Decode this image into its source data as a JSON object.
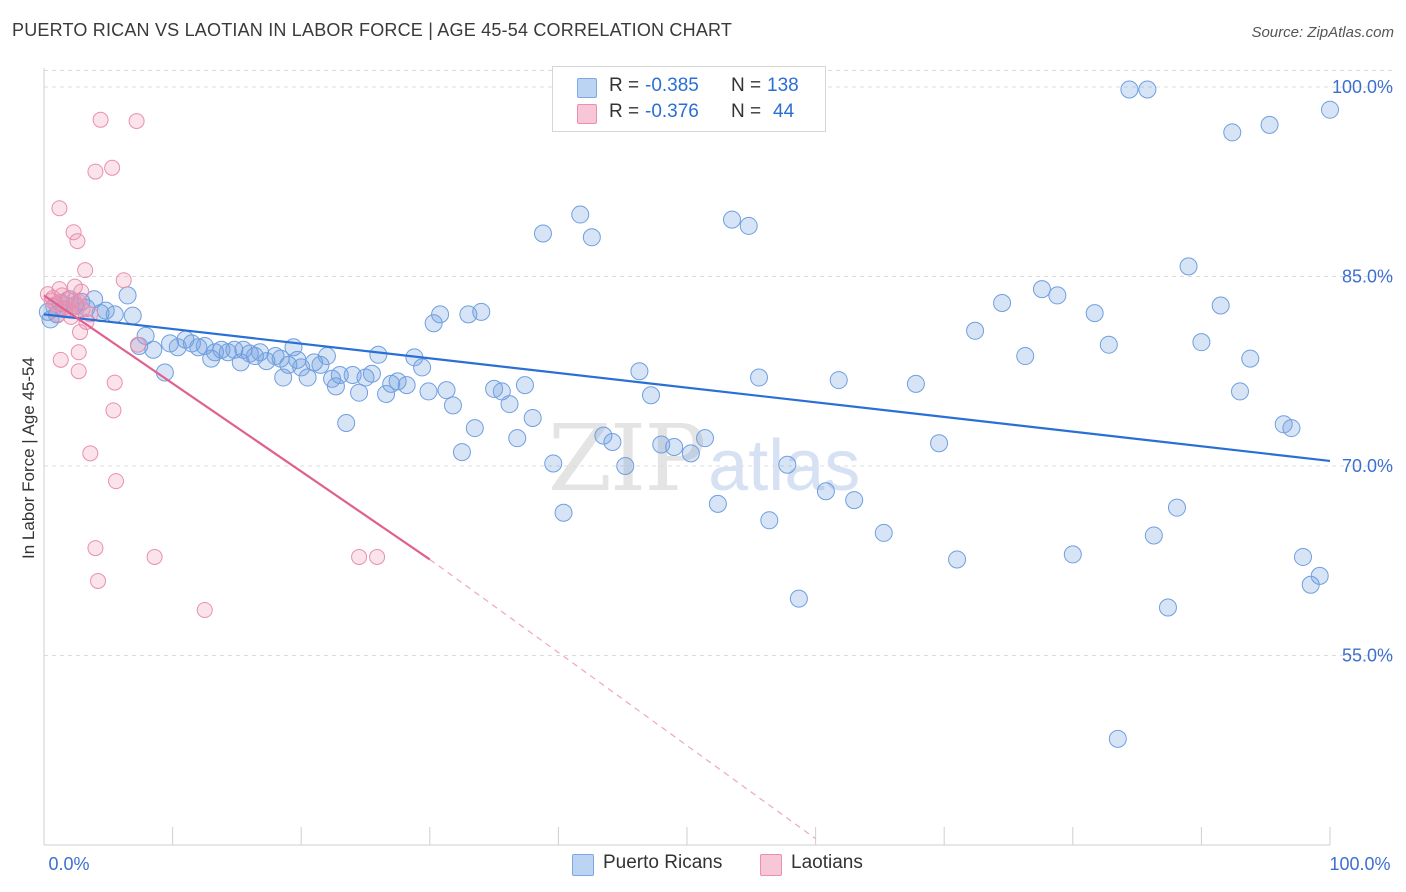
{
  "header": {
    "title": "PUERTO RICAN VS LAOTIAN IN LABOR FORCE | AGE 45-54 CORRELATION CHART",
    "source": "Source: ZipAtlas.com"
  },
  "watermark": {
    "zip": "ZIP",
    "atlas": "atlas"
  },
  "legend": {
    "rows": [
      {
        "r_label": "R =",
        "r_value": "-0.385",
        "n_label": "N =",
        "n_value": "138",
        "color": "#6f9fe0"
      },
      {
        "r_label": "R =",
        "r_value": "-0.376",
        "n_label": "N =",
        "n_value": "44",
        "color": "#ea8fae"
      }
    ]
  },
  "bottom_legend": {
    "items": [
      {
        "label": "Puerto Ricans",
        "color": "#6f9fe0"
      },
      {
        "label": "Laotians",
        "color": "#ea8fae"
      }
    ]
  },
  "chart_data": {
    "type": "scatter",
    "title": "PUERTO RICAN VS LAOTIAN IN LABOR FORCE | AGE 45-54 CORRELATION CHART",
    "ylabel": "In Labor Force | Age 45-54",
    "xlabel": "",
    "x_tick_labels": [
      "0.0%",
      "100.0%"
    ],
    "y_tick_labels": [
      "100.0%",
      "85.0%",
      "70.0%",
      "55.0%"
    ],
    "y_ticks": [
      100,
      85,
      70,
      55
    ],
    "xlim": [
      0,
      100
    ],
    "ylim": [
      40,
      101.5
    ],
    "grid": true,
    "legend_position": "top-center",
    "colors": {
      "puerto_ricans": "#6f9fe0",
      "laotians": "#ea8fae",
      "trend_blue": "#2a6fd4",
      "trend_pink": "#e0608f"
    },
    "series": [
      {
        "name": "Puerto Ricans",
        "color": "#6f9fe0",
        "trend": {
          "x": [
            0,
            100
          ],
          "y": [
            82.0,
            70.4
          ]
        },
        "points": [
          [
            0.3,
            82.2
          ],
          [
            0.5,
            81.6
          ],
          [
            0.8,
            82.6
          ],
          [
            1.0,
            82.0
          ],
          [
            1.3,
            82.9
          ],
          [
            1.6,
            82.4
          ],
          [
            2.0,
            83.2
          ],
          [
            2.4,
            82.7
          ],
          [
            2.9,
            83.0
          ],
          [
            3.3,
            82.5
          ],
          [
            3.9,
            83.2
          ],
          [
            4.4,
            82.1
          ],
          [
            4.8,
            82.3
          ],
          [
            5.5,
            82.0
          ],
          [
            6.5,
            83.5
          ],
          [
            6.9,
            81.9
          ],
          [
            7.4,
            79.5
          ],
          [
            7.9,
            80.3
          ],
          [
            8.5,
            79.2
          ],
          [
            9.4,
            77.4
          ],
          [
            9.8,
            79.7
          ],
          [
            10.4,
            79.4
          ],
          [
            11.0,
            80.0
          ],
          [
            11.5,
            79.7
          ],
          [
            12.0,
            79.4
          ],
          [
            12.5,
            79.5
          ],
          [
            13.0,
            78.5
          ],
          [
            13.3,
            79.0
          ],
          [
            13.8,
            79.2
          ],
          [
            14.3,
            79.0
          ],
          [
            14.8,
            79.2
          ],
          [
            15.3,
            78.2
          ],
          [
            15.5,
            79.2
          ],
          [
            16.0,
            78.9
          ],
          [
            16.4,
            78.7
          ],
          [
            16.8,
            79.0
          ],
          [
            17.3,
            78.3
          ],
          [
            18.0,
            78.7
          ],
          [
            18.4,
            78.5
          ],
          [
            18.6,
            77.0
          ],
          [
            19.0,
            78.0
          ],
          [
            19.4,
            79.4
          ],
          [
            19.7,
            78.4
          ],
          [
            20.0,
            77.8
          ],
          [
            20.5,
            77.0
          ],
          [
            21.0,
            78.2
          ],
          [
            21.5,
            78.0
          ],
          [
            22.0,
            78.7
          ],
          [
            22.4,
            76.9
          ],
          [
            22.7,
            76.3
          ],
          [
            23.0,
            77.2
          ],
          [
            23.5,
            73.4
          ],
          [
            24.0,
            77.2
          ],
          [
            24.5,
            75.8
          ],
          [
            25.0,
            77.0
          ],
          [
            25.5,
            77.3
          ],
          [
            26.0,
            78.8
          ],
          [
            26.6,
            75.7
          ],
          [
            27.0,
            76.5
          ],
          [
            27.5,
            76.7
          ],
          [
            28.2,
            76.4
          ],
          [
            28.8,
            78.6
          ],
          [
            29.4,
            77.8
          ],
          [
            29.9,
            75.9
          ],
          [
            30.3,
            81.3
          ],
          [
            30.8,
            82.0
          ],
          [
            31.3,
            76.0
          ],
          [
            31.8,
            74.8
          ],
          [
            32.5,
            71.1
          ],
          [
            33.0,
            82.0
          ],
          [
            33.5,
            73.0
          ],
          [
            34.0,
            82.2
          ],
          [
            35.0,
            76.1
          ],
          [
            35.6,
            75.9
          ],
          [
            36.2,
            74.9
          ],
          [
            36.8,
            72.2
          ],
          [
            37.4,
            76.4
          ],
          [
            38.0,
            73.8
          ],
          [
            38.8,
            88.4
          ],
          [
            39.6,
            70.2
          ],
          [
            40.4,
            66.3
          ],
          [
            41.7,
            89.9
          ],
          [
            42.6,
            88.1
          ],
          [
            43.5,
            72.4
          ],
          [
            44.2,
            71.9
          ],
          [
            45.2,
            70.0
          ],
          [
            46.3,
            77.5
          ],
          [
            47.2,
            75.6
          ],
          [
            48.0,
            71.7
          ],
          [
            49.0,
            71.5
          ],
          [
            50.3,
            71.0
          ],
          [
            51.4,
            72.2
          ],
          [
            52.4,
            67.0
          ],
          [
            53.5,
            89.5
          ],
          [
            54.8,
            89.0
          ],
          [
            55.6,
            77.0
          ],
          [
            56.4,
            65.7
          ],
          [
            57.8,
            70.1
          ],
          [
            58.7,
            59.5
          ],
          [
            60.8,
            68.0
          ],
          [
            61.8,
            76.8
          ],
          [
            63.0,
            67.3
          ],
          [
            65.3,
            64.7
          ],
          [
            67.8,
            76.5
          ],
          [
            69.6,
            71.8
          ],
          [
            71.0,
            62.6
          ],
          [
            72.4,
            80.7
          ],
          [
            74.5,
            82.9
          ],
          [
            76.3,
            78.7
          ],
          [
            77.6,
            84.0
          ],
          [
            78.8,
            83.5
          ],
          [
            80.0,
            63.0
          ],
          [
            81.7,
            82.1
          ],
          [
            82.8,
            79.6
          ],
          [
            83.5,
            48.4
          ],
          [
            84.4,
            99.8
          ],
          [
            85.8,
            99.8
          ],
          [
            86.3,
            64.5
          ],
          [
            87.4,
            58.8
          ],
          [
            88.1,
            66.7
          ],
          [
            89.0,
            85.8
          ],
          [
            90.0,
            79.8
          ],
          [
            91.5,
            82.7
          ],
          [
            92.4,
            96.4
          ],
          [
            93.0,
            75.9
          ],
          [
            93.8,
            78.5
          ],
          [
            95.3,
            97.0
          ],
          [
            96.4,
            73.3
          ],
          [
            97.0,
            73.0
          ],
          [
            97.9,
            62.8
          ],
          [
            98.5,
            60.6
          ],
          [
            99.2,
            61.3
          ],
          [
            100.0,
            98.2
          ]
        ]
      },
      {
        "name": "Laotians",
        "color": "#ea8fae",
        "trend": {
          "x": [
            0,
            30
          ],
          "y": [
            83.5,
            62.6
          ],
          "dashed_to": {
            "x": 60,
            "y": 40.5
          }
        },
        "points": [
          [
            0.3,
            83.6
          ],
          [
            0.6,
            83.1
          ],
          [
            0.9,
            82.8
          ],
          [
            1.2,
            84.0
          ],
          [
            1.5,
            82.5
          ],
          [
            1.8,
            83.2
          ],
          [
            2.1,
            81.8
          ],
          [
            2.4,
            84.2
          ],
          [
            2.7,
            83.0
          ],
          [
            3.0,
            82.4
          ],
          [
            3.3,
            81.4
          ],
          [
            3.6,
            82.0
          ],
          [
            0.7,
            83.3
          ],
          [
            1.1,
            82.0
          ],
          [
            1.4,
            83.5
          ],
          [
            1.7,
            82.8
          ],
          [
            2.0,
            82.3
          ],
          [
            2.3,
            83.1
          ],
          [
            2.6,
            82.6
          ],
          [
            2.9,
            83.8
          ],
          [
            1.2,
            90.4
          ],
          [
            1.3,
            78.4
          ],
          [
            2.3,
            88.5
          ],
          [
            2.6,
            87.8
          ],
          [
            2.7,
            79.0
          ],
          [
            2.7,
            77.5
          ],
          [
            2.8,
            80.6
          ],
          [
            3.2,
            85.5
          ],
          [
            3.6,
            71.0
          ],
          [
            4.0,
            93.3
          ],
          [
            4.0,
            63.5
          ],
          [
            4.2,
            60.9
          ],
          [
            4.4,
            97.4
          ],
          [
            5.3,
            93.6
          ],
          [
            5.4,
            74.4
          ],
          [
            5.5,
            76.6
          ],
          [
            5.6,
            68.8
          ],
          [
            6.2,
            84.7
          ],
          [
            7.2,
            97.3
          ],
          [
            7.3,
            79.6
          ],
          [
            8.6,
            62.8
          ],
          [
            12.5,
            58.6
          ],
          [
            24.5,
            62.8
          ],
          [
            25.9,
            62.8
          ]
        ]
      }
    ]
  }
}
